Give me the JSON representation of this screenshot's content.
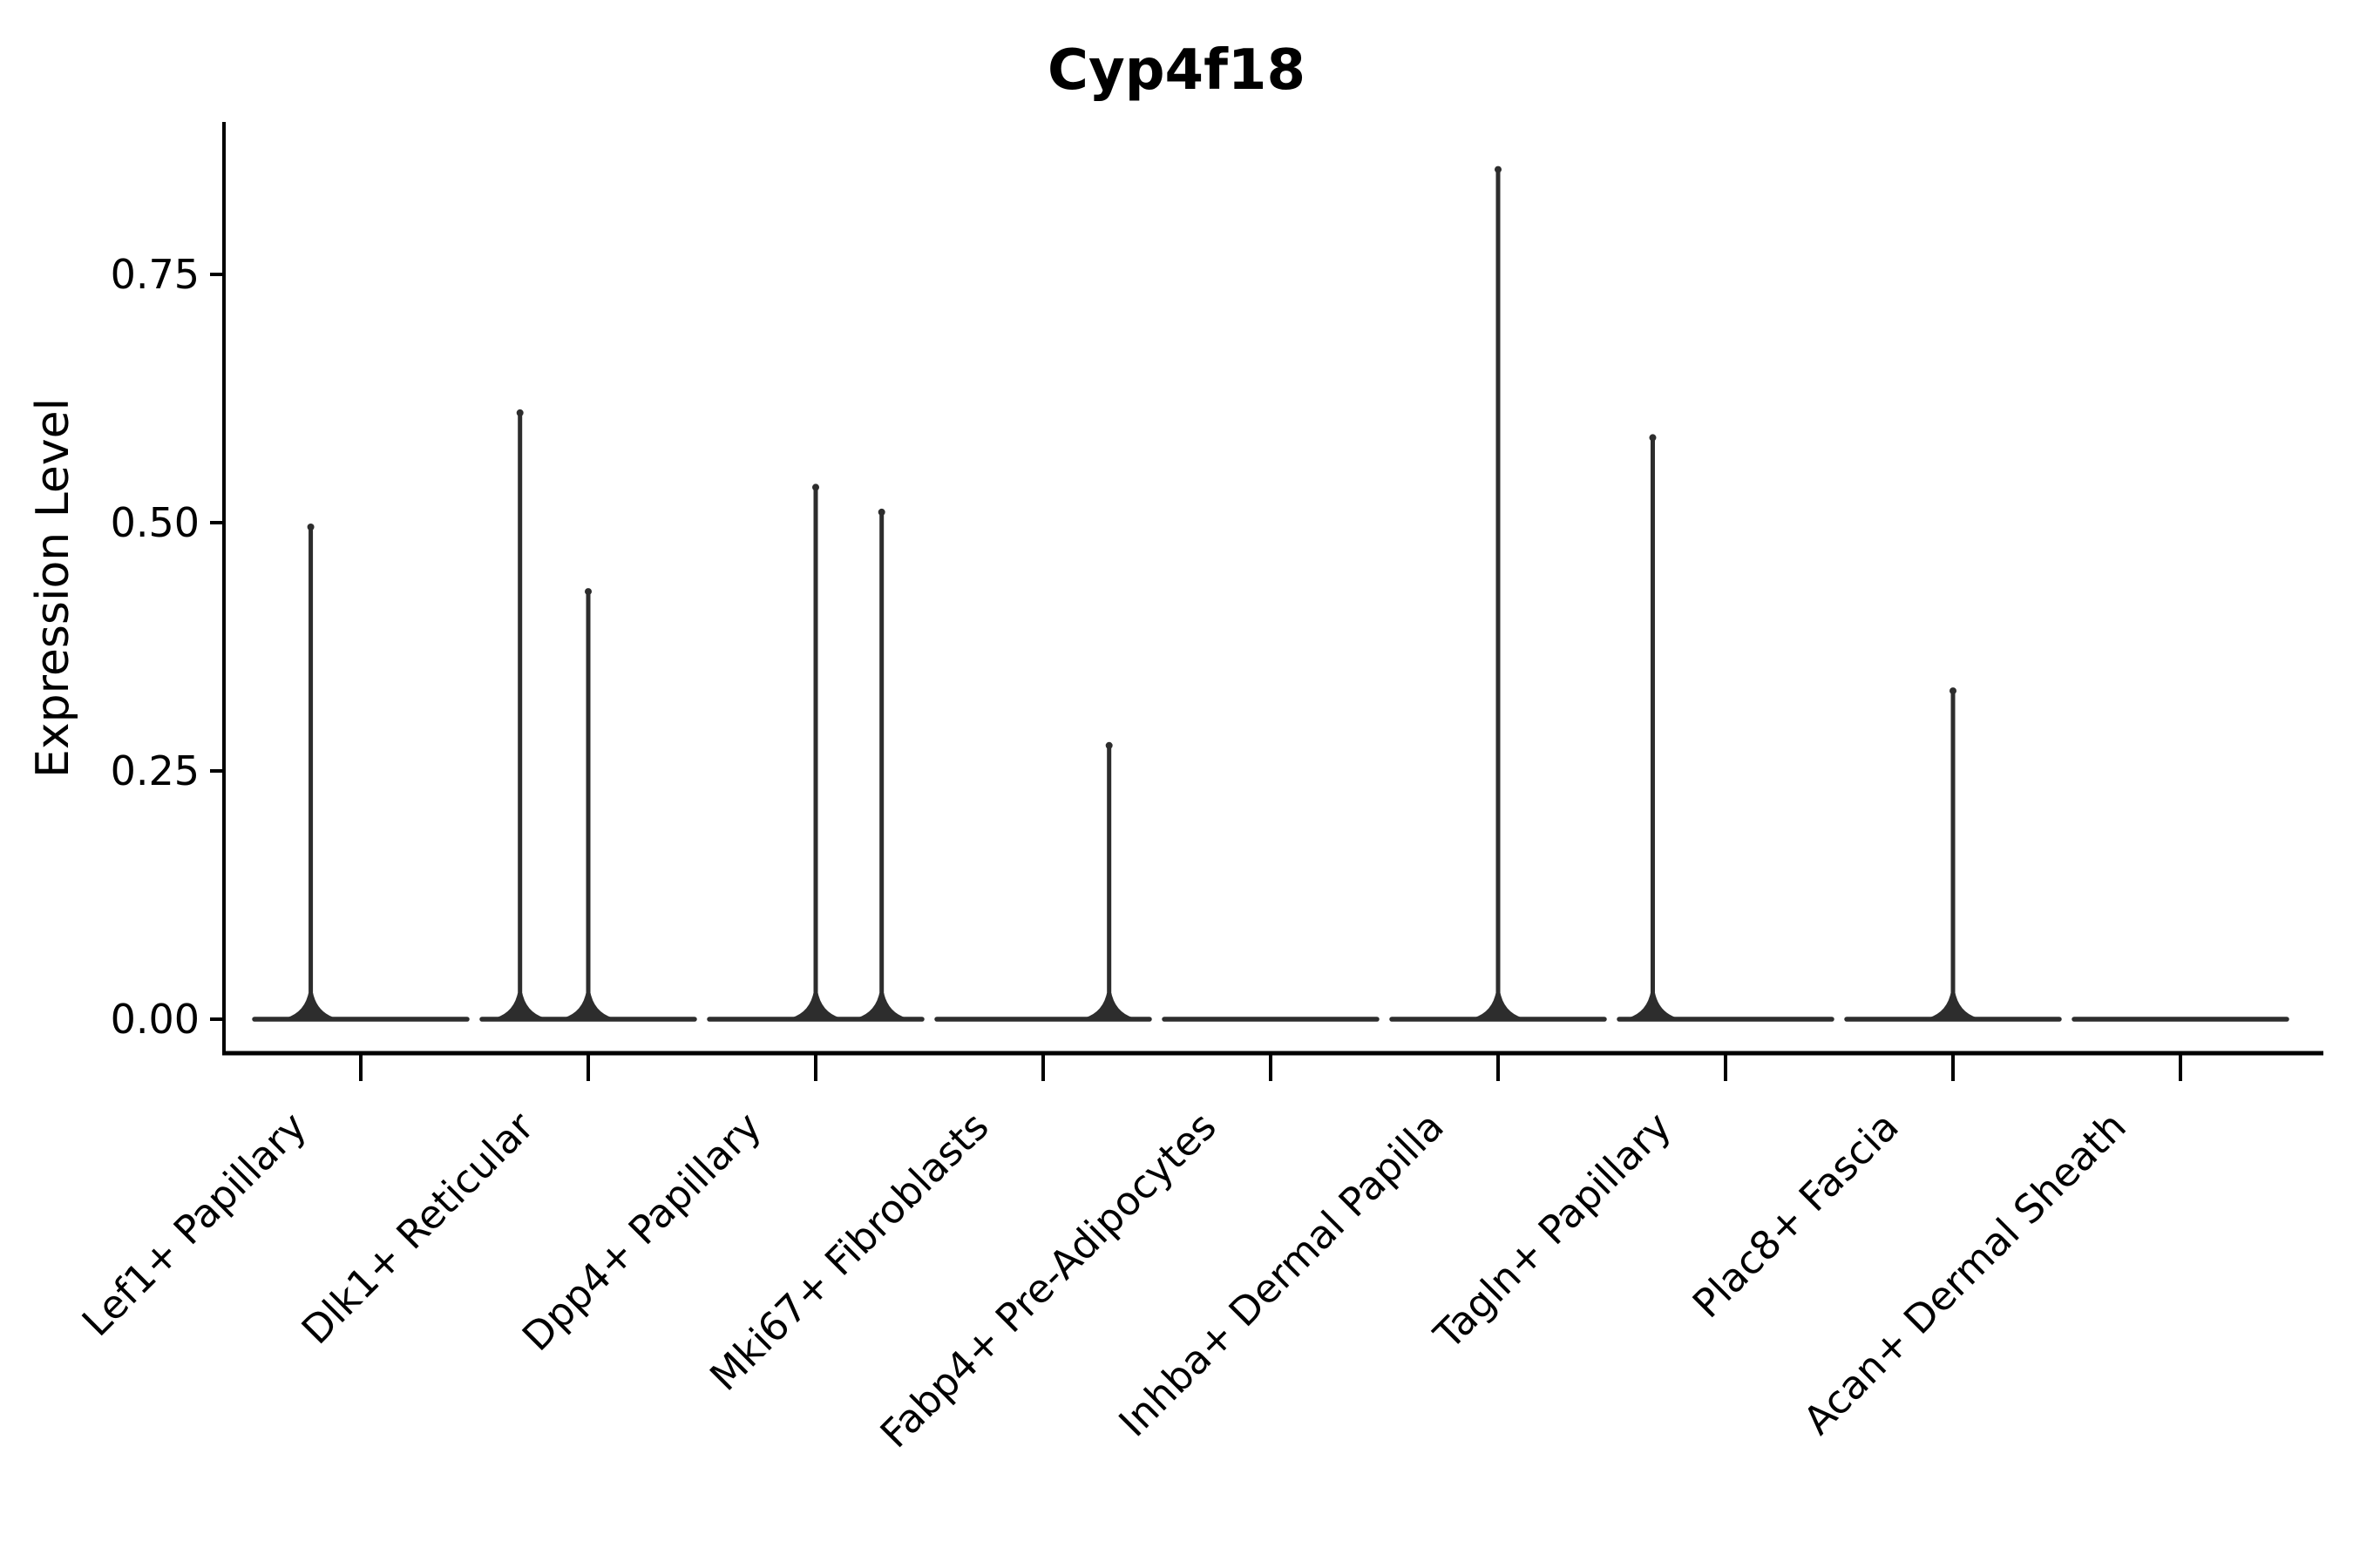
{
  "chart_data": {
    "type": "violin",
    "title": "Cyp4f18",
    "ylabel": "Expression Level",
    "xlabel": "",
    "legend": null,
    "grid": false,
    "ylim": [
      -0.034,
      0.904
    ],
    "y_ticks": [
      0.0,
      0.25,
      0.5,
      0.75
    ],
    "y_tick_labels": [
      "0.00",
      "0.25",
      "0.50",
      "0.75"
    ],
    "categories": [
      "Lef1+ Papillary",
      "Dlk1+ Reticular",
      "Dpp4+ Papillary",
      "Mki67+ Fibroblasts",
      "Fabp4+ Pre-Adipocytes",
      "Inhba+ Dermal Papilla",
      "Tagln+ Papillary",
      "Plac8+ Fascia",
      "Acan+ Dermal Sheath"
    ],
    "violins": [
      {
        "category": "Lef1+ Papillary",
        "baseline_value": 0.0,
        "spikes": [
          {
            "offset_frac": -0.22,
            "max": 0.5
          }
        ]
      },
      {
        "category": "Dlk1+ Reticular",
        "baseline_value": 0.0,
        "spikes": [
          {
            "offset_frac": -0.3,
            "max": 0.615
          },
          {
            "offset_frac": 0.0,
            "max": 0.435
          }
        ]
      },
      {
        "category": "Dpp4+ Papillary",
        "baseline_value": 0.0,
        "spikes": [
          {
            "offset_frac": 0.0,
            "max": 0.54
          },
          {
            "offset_frac": 0.29,
            "max": 0.515
          }
        ]
      },
      {
        "category": "Mki67+ Fibroblasts",
        "baseline_value": 0.0,
        "spikes": [
          {
            "offset_frac": 0.29,
            "max": 0.28
          }
        ]
      },
      {
        "category": "Fabp4+ Pre-Adipocytes",
        "baseline_value": 0.0,
        "spikes": []
      },
      {
        "category": "Inhba+ Dermal Papilla",
        "baseline_value": 0.0,
        "spikes": [
          {
            "offset_frac": 0.0,
            "max": 0.86
          }
        ]
      },
      {
        "category": "Tagln+ Papillary",
        "baseline_value": 0.0,
        "spikes": [
          {
            "offset_frac": -0.32,
            "max": 0.59
          }
        ]
      },
      {
        "category": "Plac8+ Fascia",
        "baseline_value": 0.0,
        "spikes": [
          {
            "offset_frac": 0.0,
            "max": 0.335
          }
        ]
      },
      {
        "category": "Acan+ Dermal Sheath",
        "baseline_value": 0.0,
        "spikes": []
      }
    ],
    "colors": {
      "violin": "#2d2d2d",
      "axis": "#000000",
      "text": "#000000",
      "background": "#ffffff"
    }
  }
}
